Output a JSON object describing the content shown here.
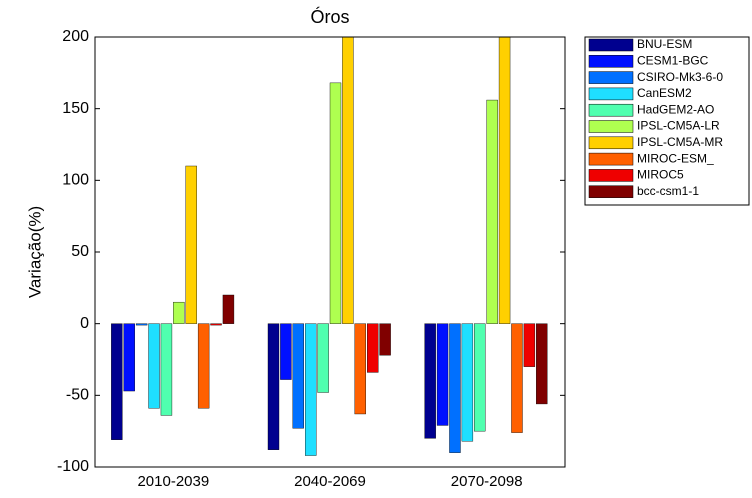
{
  "chart_data": {
    "type": "bar",
    "title": "Óros",
    "y_label": "Variação(%)",
    "categories": [
      "2010-2039",
      "2040-2069",
      "2070-2098"
    ],
    "ylim": [
      -100,
      200
    ],
    "yticks": [
      -100,
      -50,
      0,
      50,
      100,
      150,
      200
    ],
    "legend": "outside-right",
    "series": [
      {
        "name": "BNU-ESM",
        "color": "#00008f",
        "values": [
          -81,
          -88,
          -80
        ]
      },
      {
        "name": "CESM1-BGC",
        "color": "#0010ff",
        "values": [
          -47,
          -39,
          -71
        ]
      },
      {
        "name": "CSIRO-Mk3-6-0",
        "color": "#0070ff",
        "values": [
          -1,
          -73,
          -90
        ]
      },
      {
        "name": "CanESM2",
        "color": "#1fdfff",
        "values": [
          -59,
          -92,
          -82
        ]
      },
      {
        "name": "HadGEM2-AO",
        "color": "#50ffaf",
        "values": [
          -64,
          -48,
          -75
        ]
      },
      {
        "name": "IPSL-CM5A-LR",
        "color": "#afff50",
        "values": [
          15,
          168,
          156
        ]
      },
      {
        "name": "IPSL-CM5A-MR",
        "color": "#ffd000",
        "values": [
          110,
          200,
          200
        ]
      },
      {
        "name": "MIROC-ESM_",
        "color": "#ff6000",
        "values": [
          -59,
          -63,
          -76
        ]
      },
      {
        "name": "MIROC5",
        "color": "#ef0000",
        "values": [
          -1,
          -34,
          -30
        ]
      },
      {
        "name": "bcc-csm1-1",
        "color": "#800000",
        "values": [
          20,
          -22,
          -56
        ]
      }
    ]
  }
}
